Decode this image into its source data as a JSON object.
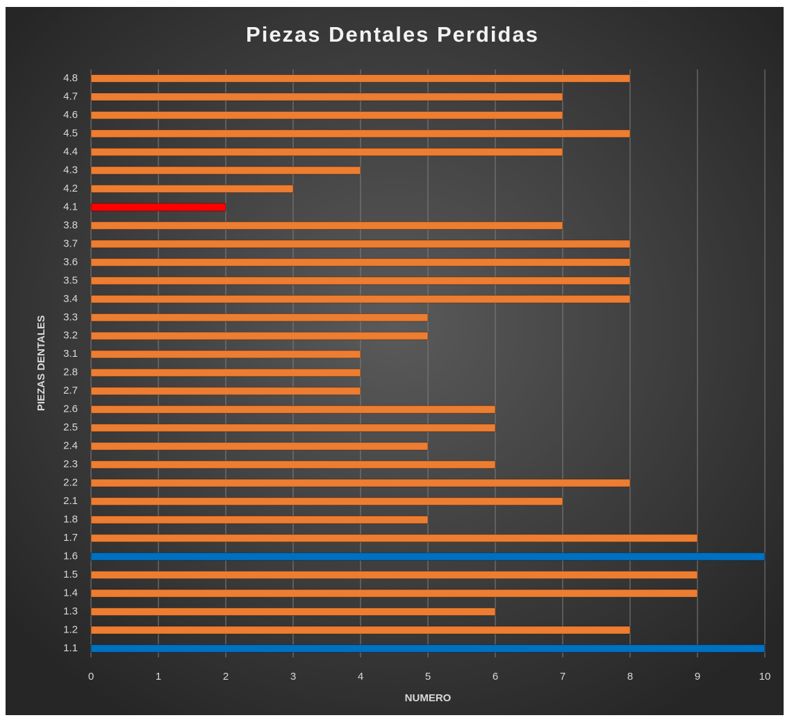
{
  "chart_data": {
    "type": "barh",
    "title": "Piezas Dentales Perdidas",
    "x_label": "NUMERO",
    "y_label": "PIEZAS DENTALES",
    "categories": [
      "1.1",
      "1.2",
      "1.3",
      "1.4",
      "1.5",
      "1.6",
      "1.7",
      "1.8",
      "2.1",
      "2.2",
      "2.3",
      "2.4",
      "2.5",
      "2.6",
      "2.7",
      "2.8",
      "3.1",
      "3.2",
      "3.3",
      "3.4",
      "3.5",
      "3.6",
      "3.7",
      "3.8",
      "4.1",
      "4.2",
      "4.3",
      "4.4",
      "4.5",
      "4.6",
      "4.7",
      "4.8"
    ],
    "values": [
      10,
      8,
      6,
      9,
      9,
      10,
      9,
      5,
      7,
      8,
      6,
      5,
      6,
      6,
      4,
      4,
      4,
      5,
      5,
      8,
      8,
      8,
      8,
      7,
      2,
      3,
      4,
      7,
      8,
      7,
      7,
      8
    ],
    "colors": [
      "#0070c0",
      "#ed7d31",
      "#ed7d31",
      "#ed7d31",
      "#ed7d31",
      "#0070c0",
      "#ed7d31",
      "#ed7d31",
      "#ed7d31",
      "#ed7d31",
      "#ed7d31",
      "#ed7d31",
      "#ed7d31",
      "#ed7d31",
      "#ed7d31",
      "#ed7d31",
      "#ed7d31",
      "#ed7d31",
      "#ed7d31",
      "#ed7d31",
      "#ed7d31",
      "#ed7d31",
      "#ed7d31",
      "#ed7d31",
      "#ff0000",
      "#ed7d31",
      "#ed7d31",
      "#ed7d31",
      "#ed7d31",
      "#ed7d31",
      "#ed7d31",
      "#ed7d31"
    ],
    "xlim": [
      0,
      10
    ],
    "xticks": [
      0,
      1,
      2,
      3,
      4,
      5,
      6,
      7,
      8,
      9,
      10
    ],
    "grid": true
  }
}
